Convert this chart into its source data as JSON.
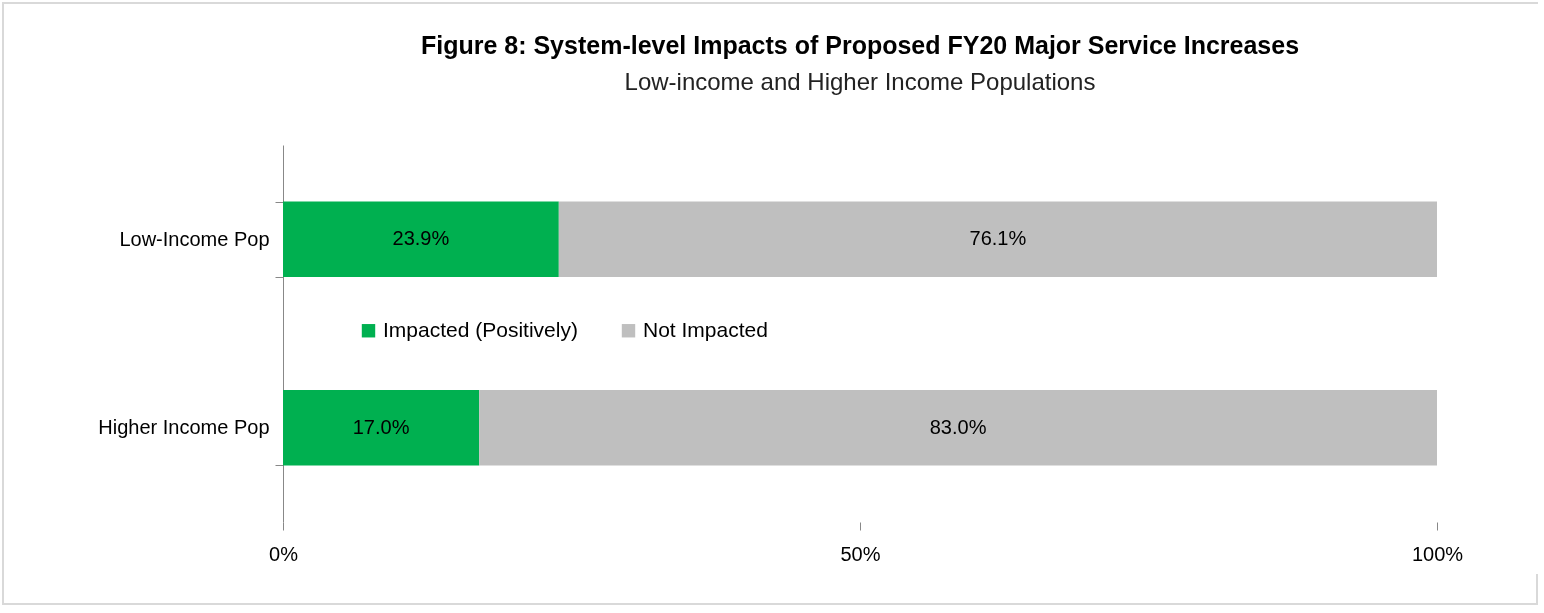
{
  "chart_data": {
    "type": "bar",
    "orientation": "horizontal",
    "stacked": true,
    "title": "Figure 8: System-level Impacts of Proposed FY20 Major Service Increases",
    "subtitle": "Low-income and Higher Income Populations",
    "categories": [
      "Low-Income Pop",
      "Higher Income Pop"
    ],
    "series": [
      {
        "name": "Impacted (Positively)",
        "color": "#00b050",
        "values": [
          23.9,
          17.0
        ],
        "value_labels": [
          "23.9%",
          "17.0%"
        ]
      },
      {
        "name": "Not Impacted",
        "color": "#bfbfbf",
        "values": [
          76.1,
          83.0
        ],
        "value_labels": [
          "76.1%",
          "83.0%"
        ]
      }
    ],
    "xlim": [
      0,
      100
    ],
    "xticks": [
      {
        "value": 0,
        "label": "0%"
      },
      {
        "value": 50,
        "label": "50%"
      },
      {
        "value": 100,
        "label": "100%"
      }
    ],
    "grid": false,
    "legend": "center"
  }
}
